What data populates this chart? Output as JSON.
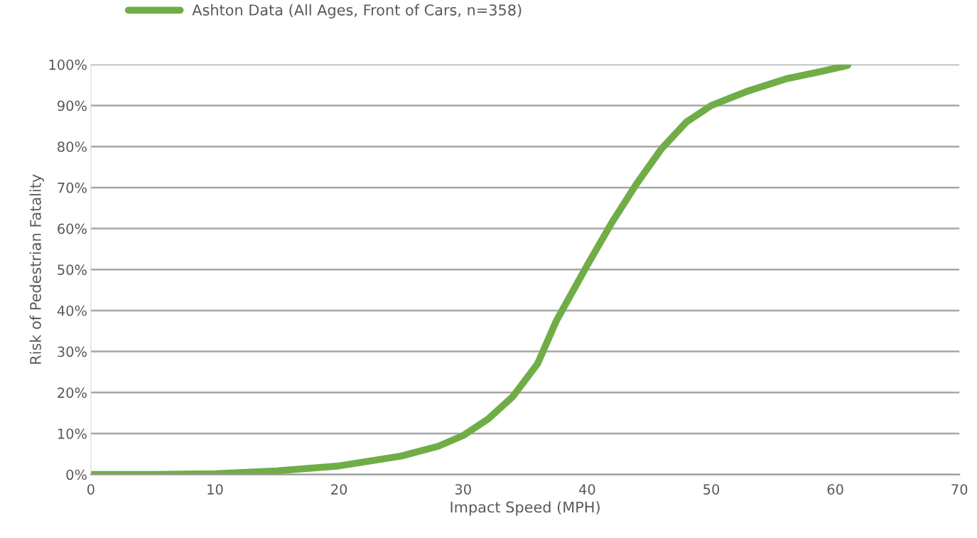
{
  "chart_data": {
    "type": "line",
    "xlabel": "Impact Speed (MPH)",
    "ylabel": "Risk of Pedestrian Fatality",
    "series": [
      {
        "name": "Ashton Data (All Ages, Front of Cars, n=358)",
        "color": "#70ad47",
        "x": [
          0,
          5,
          10,
          15,
          20,
          25,
          28,
          30,
          32,
          34,
          36,
          37.5,
          40,
          42,
          44,
          46,
          48,
          50,
          53,
          56,
          59,
          61
        ],
        "values": [
          0,
          0,
          0.2,
          0.9,
          2.1,
          4.5,
          6.9,
          9.5,
          13.5,
          19,
          27,
          37.4,
          51,
          61.5,
          71,
          79.5,
          86,
          90,
          93.6,
          96.5,
          98.4,
          99.8
        ]
      }
    ],
    "xlim": [
      0,
      70
    ],
    "xticks": [
      0,
      10,
      20,
      30,
      40,
      50,
      60,
      70
    ],
    "ylim": [
      0,
      100
    ],
    "yticks": [
      {
        "value": 0,
        "label": "0%"
      },
      {
        "value": 10,
        "label": "10%"
      },
      {
        "value": 20,
        "label": "20%"
      },
      {
        "value": 30,
        "label": "30%"
      },
      {
        "value": 40,
        "label": "40%"
      },
      {
        "value": 50,
        "label": "50%"
      },
      {
        "value": 60,
        "label": "60%"
      },
      {
        "value": 70,
        "label": "70%"
      },
      {
        "value": 80,
        "label": "80%"
      },
      {
        "value": 90,
        "label": "90%"
      },
      {
        "value": 100,
        "label": "100%"
      }
    ],
    "grid": "y",
    "legend": "top",
    "marker": "none",
    "line_style": "solid"
  }
}
